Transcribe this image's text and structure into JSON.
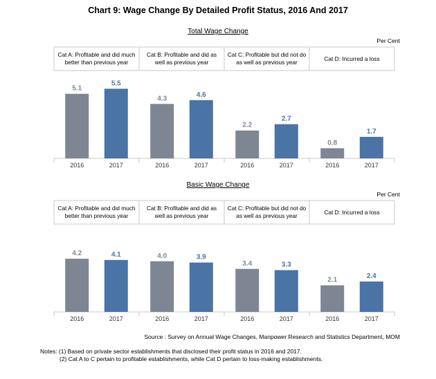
{
  "title": "Chart 9: Wage Change By Detailed Profit Status, 2016 And 2017",
  "colors": {
    "y2016": "#7f8693",
    "y2017": "#4a73a6",
    "grid": "#c8c8c8"
  },
  "chart_data": [
    {
      "type": "bar",
      "title": "Total Wage Change",
      "unit": "Per Cent",
      "ylim": [
        0,
        6.5
      ],
      "groups": [
        {
          "label_lines": [
            "Cat A: Profitable and did much",
            "better than previous year"
          ],
          "categories": [
            "2016",
            "2017"
          ],
          "values": [
            5.1,
            5.5
          ],
          "value_labels": [
            "5.1",
            "5.5"
          ]
        },
        {
          "label_lines": [
            "Cat B: Profitable and did as",
            "well as previous year"
          ],
          "categories": [
            "2016",
            "2017"
          ],
          "values": [
            4.3,
            4.6
          ],
          "value_labels": [
            "4.3",
            "4.6"
          ]
        },
        {
          "label_lines": [
            "Cat C: Profitable but did not do",
            "as well as previous year"
          ],
          "categories": [
            "2016",
            "2017"
          ],
          "values": [
            2.2,
            2.7
          ],
          "value_labels": [
            "2.2",
            "2.7"
          ]
        },
        {
          "label_lines": [
            "Cat D: Incurred a loss"
          ],
          "categories": [
            "2016",
            "2017"
          ],
          "values": [
            0.8,
            1.7
          ],
          "value_labels": [
            "0.8",
            "1.7"
          ]
        }
      ]
    },
    {
      "type": "bar",
      "title": "Basic Wage Change",
      "unit": "Per Cent",
      "ylim": [
        0,
        6.5
      ],
      "groups": [
        {
          "label_lines": [
            "Cat A: Profitable and did much",
            "better than previous year"
          ],
          "categories": [
            "2016",
            "2017"
          ],
          "values": [
            4.2,
            4.1
          ],
          "value_labels": [
            "4.2",
            "4.1"
          ]
        },
        {
          "label_lines": [
            "Cat B: Profitable and did as",
            "well as previous year"
          ],
          "categories": [
            "2016",
            "2017"
          ],
          "values": [
            4.0,
            3.9
          ],
          "value_labels": [
            "4.0",
            "3.9"
          ]
        },
        {
          "label_lines": [
            "Cat C: Profitable but did not do",
            "as well as previous year"
          ],
          "categories": [
            "2016",
            "2017"
          ],
          "values": [
            3.4,
            3.3
          ],
          "value_labels": [
            "3.4",
            "3.3"
          ]
        },
        {
          "label_lines": [
            "Cat D: Incurred a loss"
          ],
          "categories": [
            "2016",
            "2017"
          ],
          "values": [
            2.1,
            2.4
          ],
          "value_labels": [
            "2.1",
            "2.4"
          ]
        }
      ]
    }
  ],
  "source": "Source : Survey on Annual Wage Changes, Manpower Research and Statistics Department, MOM",
  "notes": [
    "Notes: (1) Based on private sector establishments that disclosed their profit status in 2016 and 2017.",
    "(2) Cat A to C pertain to profitable establishments, while Cat D pertain to loss-making establishments."
  ]
}
